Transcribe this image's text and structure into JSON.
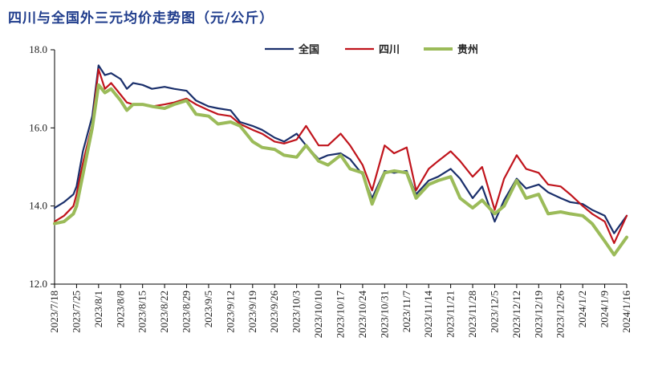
{
  "chart_data": {
    "type": "line",
    "title": "四川与全国外三元均价走势图（元/公斤）",
    "xlabel": "",
    "ylabel": "",
    "ylim": [
      12.0,
      18.0
    ],
    "yticks": [
      "12.0",
      "14.0",
      "16.0",
      "18.0"
    ],
    "grid": false,
    "legend_position": "top-right",
    "x": [
      "2023/7/18",
      "2023/7/21",
      "2023/7/24",
      "2023/7/25",
      "2023/7/27",
      "2023/7/30",
      "2023/8/1",
      "2023/8/3",
      "2023/8/5",
      "2023/8/8",
      "2023/8/10",
      "2023/8/12",
      "2023/8/15",
      "2023/8/18",
      "2023/8/22",
      "2023/8/25",
      "2023/8/29",
      "2023/9/1",
      "2023/9/5",
      "2023/9/8",
      "2023/9/12",
      "2023/9/15",
      "2023/9/19",
      "2023/9/22",
      "2023/9/26",
      "2023/9/29",
      "2023/10/3",
      "2023/10/6",
      "2023/10/10",
      "2023/10/13",
      "2023/10/17",
      "2023/10/20",
      "2023/10/24",
      "2023/10/27",
      "2023/10/31",
      "2023/11/3",
      "2023/11/7",
      "2023/11/10",
      "2023/11/14",
      "2023/11/17",
      "2023/11/21",
      "2023/11/24",
      "2023/11/28",
      "2023/12/1",
      "2023/12/5",
      "2023/12/8",
      "2023/12/12",
      "2023/12/15",
      "2023/12/19",
      "2023/12/22",
      "2023/12/26",
      "2023/12/29",
      "2024/1/2",
      "2024/1/5",
      "2024/1/9",
      "2024/1/12",
      "2024/1/16"
    ],
    "xtick_labels": [
      "2023/7/18",
      "2023/7/25",
      "2023/8/1",
      "2023/8/8",
      "2023/8/15",
      "2023/8/22",
      "2023/8/29",
      "2023/9/5",
      "2023/9/12",
      "2023/9/19",
      "2023/9/26",
      "2023/10/3",
      "2023/10/10",
      "2023/10/17",
      "2023/10/24",
      "2023/10/31",
      "2023/11/7",
      "2023/11/14",
      "2023/11/21",
      "2023/11/28",
      "2023/12/5",
      "2023/12/12",
      "2023/12/19",
      "2023/12/26",
      "2024/1/2",
      "2024/1/9",
      "2024/1/16"
    ],
    "series": [
      {
        "name": "全国",
        "color": "#1a2f6b",
        "width": 2.2,
        "values": [
          13.95,
          14.1,
          14.3,
          14.5,
          15.4,
          16.3,
          17.6,
          17.35,
          17.4,
          17.25,
          17.0,
          17.15,
          17.1,
          17.0,
          17.05,
          17.0,
          16.95,
          16.7,
          16.55,
          16.5,
          16.45,
          16.15,
          16.05,
          15.95,
          15.75,
          15.65,
          15.85,
          15.55,
          15.2,
          15.3,
          15.35,
          15.2,
          14.8,
          14.2,
          14.9,
          14.85,
          14.9,
          14.3,
          14.65,
          14.75,
          14.95,
          14.7,
          14.2,
          14.5,
          13.6,
          14.15,
          14.7,
          14.45,
          14.55,
          14.35,
          14.2,
          14.1,
          14.05,
          13.9,
          13.75,
          13.3,
          13.75
        ]
      },
      {
        "name": "四川",
        "color": "#c0141c",
        "width": 2.2,
        "values": [
          13.6,
          13.75,
          14.0,
          14.3,
          15.1,
          16.1,
          17.5,
          17.0,
          17.15,
          16.85,
          16.65,
          16.6,
          16.6,
          16.55,
          16.6,
          16.65,
          16.75,
          16.6,
          16.45,
          16.35,
          16.3,
          16.1,
          15.95,
          15.85,
          15.65,
          15.6,
          15.7,
          16.05,
          15.55,
          15.55,
          15.85,
          15.55,
          15.05,
          14.4,
          15.55,
          15.35,
          15.5,
          14.4,
          14.95,
          15.15,
          15.4,
          15.15,
          14.75,
          15.0,
          13.9,
          14.7,
          15.3,
          14.95,
          14.85,
          14.55,
          14.5,
          14.3,
          14.0,
          13.8,
          13.6,
          13.05,
          13.75
        ]
      },
      {
        "name": "贵州",
        "color": "#9bbb59",
        "width": 4,
        "values": [
          13.55,
          13.6,
          13.8,
          14.0,
          14.8,
          16.0,
          17.1,
          16.9,
          17.0,
          16.7,
          16.45,
          16.6,
          16.6,
          16.55,
          16.5,
          16.6,
          16.7,
          16.35,
          16.3,
          16.1,
          16.15,
          16.05,
          15.65,
          15.5,
          15.45,
          15.3,
          15.25,
          15.55,
          15.15,
          15.05,
          15.3,
          14.95,
          14.85,
          14.05,
          14.85,
          14.9,
          14.85,
          14.2,
          14.55,
          14.65,
          14.75,
          14.2,
          13.95,
          14.15,
          13.8,
          14.0,
          14.65,
          14.2,
          14.3,
          13.8,
          13.85,
          13.8,
          13.75,
          13.55,
          13.1,
          12.75,
          13.2
        ]
      }
    ]
  }
}
